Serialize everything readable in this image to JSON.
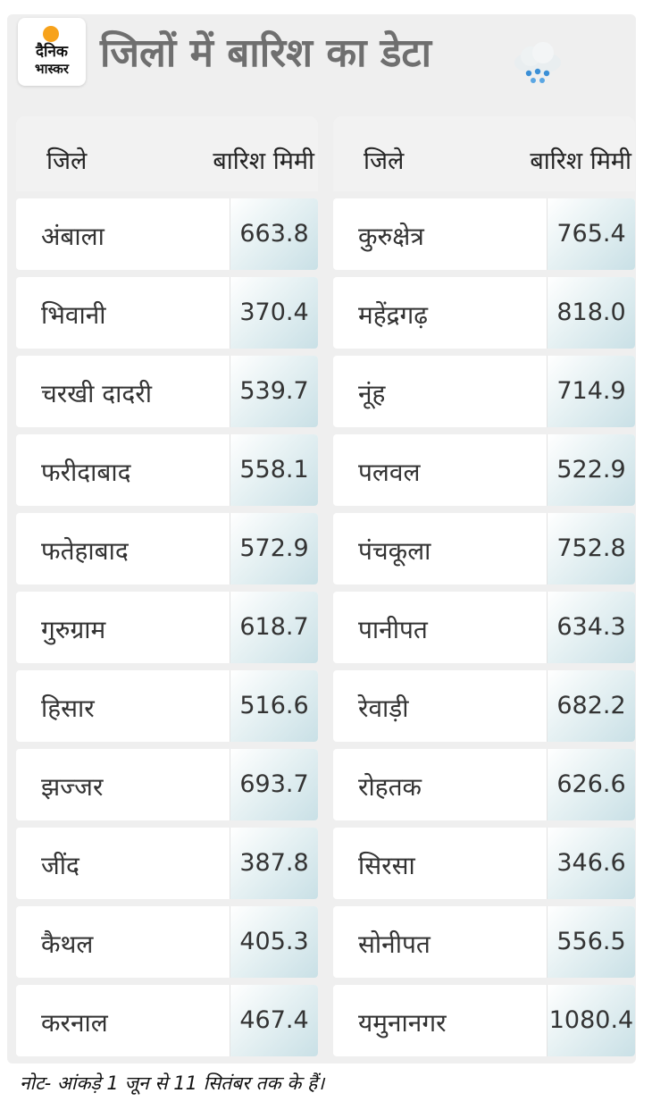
{
  "brand": {
    "line1": "दैनिक",
    "line2": "भास्कर",
    "accent_color": "#f7a21b"
  },
  "title": "जिलों में बारिश का डेटा",
  "table": {
    "header_district": "जिले",
    "header_rain": "बारिश मिमी",
    "left": [
      {
        "district": "अंबाला",
        "rain": "663.8"
      },
      {
        "district": "भिवानी",
        "rain": "370.4"
      },
      {
        "district": "चरखी दादरी",
        "rain": "539.7"
      },
      {
        "district": "फरीदाबाद",
        "rain": "558.1"
      },
      {
        "district": "फतेहाबाद",
        "rain": "572.9"
      },
      {
        "district": "गुरुग्राम",
        "rain": "618.7"
      },
      {
        "district": "हिसार",
        "rain": "516.6"
      },
      {
        "district": "झज्जर",
        "rain": "693.7"
      },
      {
        "district": "जींद",
        "rain": "387.8"
      },
      {
        "district": "कैथल",
        "rain": "405.3"
      },
      {
        "district": "करनाल",
        "rain": "467.4"
      }
    ],
    "right": [
      {
        "district": "कुरुक्षेत्र",
        "rain": "765.4"
      },
      {
        "district": "महेंद्रगढ़",
        "rain": "818.0"
      },
      {
        "district": "नूंह",
        "rain": "714.9"
      },
      {
        "district": "पलवल",
        "rain": "522.9"
      },
      {
        "district": "पंचकूला",
        "rain": "752.8"
      },
      {
        "district": "पानीपत",
        "rain": "634.3"
      },
      {
        "district": "रेवाड़ी",
        "rain": "682.2"
      },
      {
        "district": "रोहतक",
        "rain": "626.6"
      },
      {
        "district": "सिरसा",
        "rain": "346.6"
      },
      {
        "district": "सोनीपत",
        "rain": "556.5"
      },
      {
        "district": "यमुनानगर",
        "rain": "1080.4"
      }
    ]
  },
  "note": "नोट- आंकड़े 1 जून से 11 सितंबर तक के हैं।",
  "icons": {
    "weather": "rain-cloud-icon"
  },
  "colors": {
    "title": "#6f6f6f",
    "value_cell": "#c9e0e6",
    "panel": "#efefef"
  }
}
